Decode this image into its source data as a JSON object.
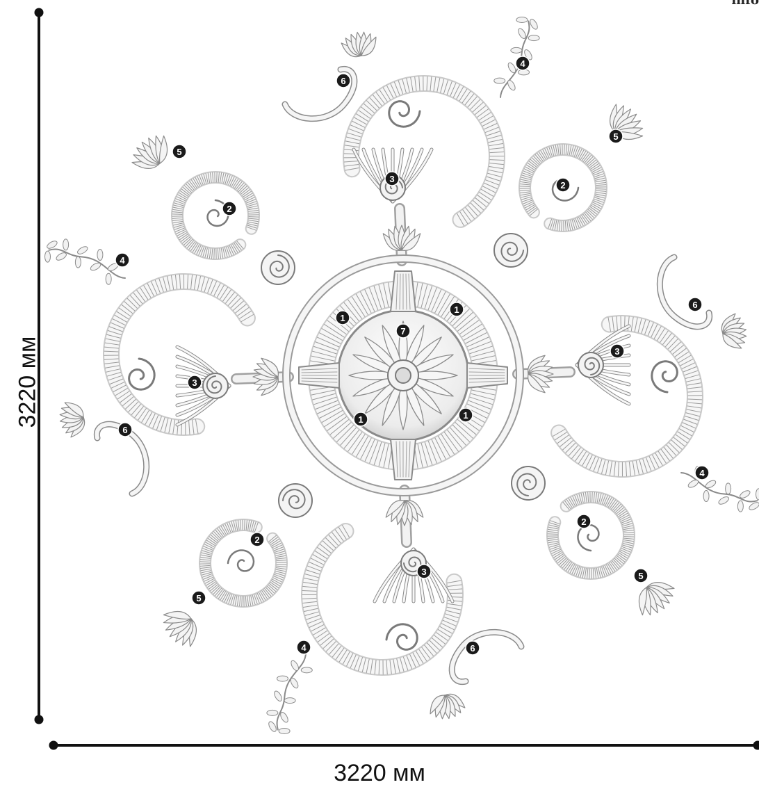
{
  "corner_text": "info",
  "dimensions": {
    "width_label": "3220 мм",
    "height_label": "3220 мм"
  },
  "callouts": {
    "center": [
      "7"
    ],
    "inner_ring": [
      "1",
      "1",
      "1",
      "1"
    ],
    "shells": [
      "3",
      "3",
      "3",
      "3"
    ],
    "scrolls": [
      "2",
      "2",
      "2",
      "2"
    ],
    "sprigs": [
      "4",
      "4",
      "4",
      "4"
    ],
    "leaf_tufts": [
      "5",
      "5",
      "5",
      "5"
    ],
    "tendrils": [
      "6",
      "6",
      "6",
      "6"
    ]
  },
  "colors": {
    "line": "#111111",
    "callout_fill": "#1a1a1a",
    "callout_text": "#ffffff",
    "plaster": "#f2f2f2",
    "plaster_shade": "#8c8c8c"
  }
}
